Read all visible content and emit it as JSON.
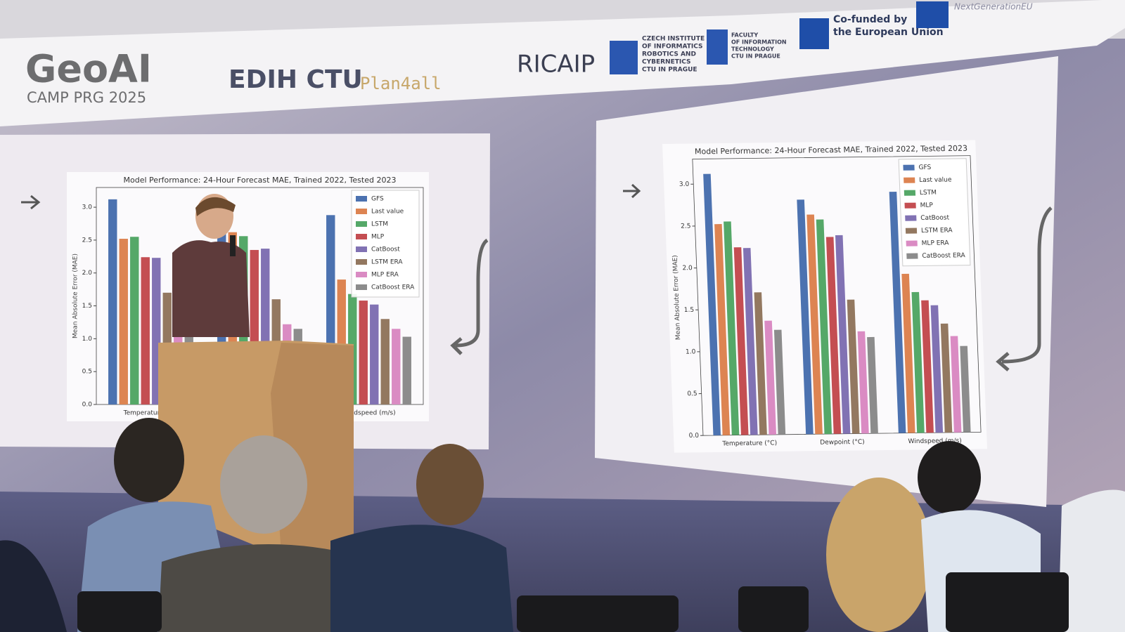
{
  "banner": {
    "geoai": "GeoAI",
    "camp": "CAMP PRG 2025",
    "edih": "EDIH CTU",
    "plan4all": "Plan4all",
    "ricaip": "RICAIP",
    "ciirc": [
      "CZECH INSTITUTE",
      "OF INFORMATICS",
      "ROBOTICS AND",
      "CYBERNETICS",
      "CTU IN PRAGUE"
    ],
    "fit": [
      "FACULTY",
      "OF INFORMATION",
      "TECHNOLOGY",
      "CTU IN PRAGUE"
    ],
    "eu": [
      "Co-funded by",
      "the European Union"
    ],
    "nextgen": "NextGenerationEU"
  },
  "chart_data": {
    "type": "bar",
    "title": "Model Performance: 24-Hour Forecast MAE, Trained 2022, Tested 2023",
    "ylabel": "Mean Absolute Error (MAE)",
    "categories": [
      "Temperature (°C)",
      "Dewpoint (°C)",
      "Windspeed (m/s)"
    ],
    "series": [
      {
        "name": "GFS",
        "color": "#4c72b0",
        "values": [
          3.12,
          2.8,
          2.88
        ]
      },
      {
        "name": "Last value",
        "color": "#dd8452",
        "values": [
          2.52,
          2.62,
          1.9
        ]
      },
      {
        "name": "LSTM",
        "color": "#55a868",
        "values": [
          2.55,
          2.56,
          1.68
        ]
      },
      {
        "name": "MLP",
        "color": "#c44e52",
        "values": [
          2.24,
          2.35,
          1.58
        ]
      },
      {
        "name": "CatBoost",
        "color": "#8172b3",
        "values": [
          2.23,
          2.37,
          1.52
        ]
      },
      {
        "name": "LSTM ERA",
        "color": "#937860",
        "values": [
          1.7,
          1.6,
          1.3
        ]
      },
      {
        "name": "MLP ERA",
        "color": "#da8bc3",
        "values": [
          1.36,
          1.22,
          1.15
        ]
      },
      {
        "name": "CatBoost ERA",
        "color": "#8c8c8c",
        "values": [
          1.25,
          1.15,
          1.03
        ]
      }
    ],
    "ylim": [
      0,
      3.3
    ],
    "yticks": [
      {
        "value": 0,
        "label": "0.0"
      },
      {
        "value": 0.5,
        "label": "0.5"
      },
      {
        "value": 1,
        "label": "1.0"
      },
      {
        "value": 1.5,
        "label": "1.5"
      },
      {
        "value": 2,
        "label": "2.0"
      },
      {
        "value": 2.5,
        "label": "2.5"
      },
      {
        "value": 3,
        "label": "3.0"
      }
    ],
    "grid": false,
    "legend": "upper right"
  }
}
